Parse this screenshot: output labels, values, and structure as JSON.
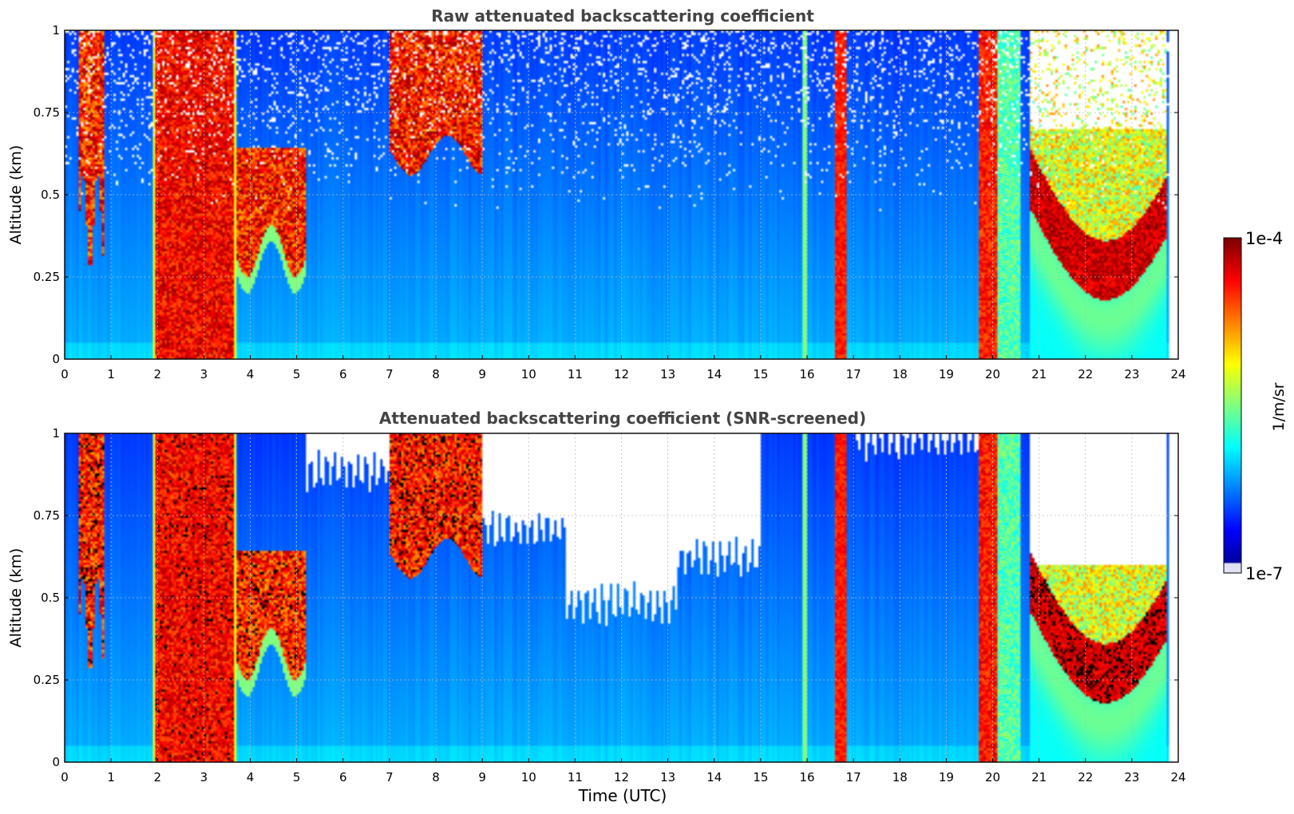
{
  "chart_data": [
    {
      "type": "heatmap",
      "title": "Raw attenuated backscattering coefficient",
      "xlabel": "",
      "ylabel": "Altitude (km)",
      "xlim": [
        0,
        24
      ],
      "ylim": [
        0,
        1
      ],
      "xticks": [
        0,
        1,
        2,
        3,
        4,
        5,
        6,
        7,
        8,
        9,
        10,
        11,
        12,
        13,
        14,
        15,
        16,
        17,
        18,
        19,
        20,
        21,
        22,
        23,
        24
      ],
      "xtick_labels": [
        "0",
        "1",
        "2",
        "3",
        "4",
        "5",
        "6",
        "7",
        "8",
        "9",
        "10",
        "11",
        "12",
        "13",
        "14",
        "15",
        "16",
        "17",
        "18",
        "19",
        "20",
        "21",
        "22",
        "23",
        "24"
      ],
      "yticks": [
        0,
        0.25,
        0.5,
        0.75,
        1
      ],
      "ytick_labels": [
        "0",
        "0.25",
        "0.5",
        "0.75",
        "1"
      ],
      "grid": true,
      "colorscale": "jet",
      "cloud_layers": [
        {
          "t_start": 0.3,
          "t_end": 0.85,
          "base_km": 0.42,
          "top_km": 1.0
        },
        {
          "t_start": 1.9,
          "t_end": 3.7,
          "base_km": 0.0,
          "top_km": 1.0
        },
        {
          "t_start": 3.7,
          "t_end": 5.2,
          "base_km": 0.33,
          "top_km": 0.62
        },
        {
          "t_start": 7.0,
          "t_end": 9.0,
          "base_km": 0.62,
          "top_km": 1.0
        },
        {
          "t_start": 16.6,
          "t_end": 16.85,
          "base_km": 0.0,
          "top_km": 1.0
        },
        {
          "t_start": 19.7,
          "t_end": 20.1,
          "base_km": 0.0,
          "top_km": 1.0
        },
        {
          "t_start": 21.0,
          "t_end": 23.7,
          "base_km": 0.2,
          "top_km": 0.5
        }
      ]
    },
    {
      "type": "heatmap",
      "title": "Attenuated backscattering coefficient (SNR-screened)",
      "xlabel": "Time (UTC)",
      "ylabel": "Altitude (km)",
      "xlim": [
        0,
        24
      ],
      "ylim": [
        0,
        1
      ],
      "xticks": [
        0,
        1,
        2,
        3,
        4,
        5,
        6,
        7,
        8,
        9,
        10,
        11,
        12,
        13,
        14,
        15,
        16,
        17,
        18,
        19,
        20,
        21,
        22,
        23,
        24
      ],
      "xtick_labels": [
        "0",
        "1",
        "2",
        "3",
        "4",
        "5",
        "6",
        "7",
        "8",
        "9",
        "10",
        "11",
        "12",
        "13",
        "14",
        "15",
        "16",
        "17",
        "18",
        "19",
        "20",
        "21",
        "22",
        "23",
        "24"
      ],
      "yticks": [
        0,
        0.25,
        0.5,
        0.75,
        1
      ],
      "ytick_labels": [
        "0",
        "0.25",
        "0.5",
        "0.75",
        "1"
      ],
      "grid": true,
      "colorscale": "jet",
      "cloud_layers": [
        {
          "t_start": 0.3,
          "t_end": 0.85,
          "base_km": 0.42,
          "top_km": 1.0
        },
        {
          "t_start": 1.9,
          "t_end": 3.7,
          "base_km": 0.0,
          "top_km": 1.0
        },
        {
          "t_start": 3.7,
          "t_end": 5.2,
          "base_km": 0.33,
          "top_km": 0.62
        },
        {
          "t_start": 7.0,
          "t_end": 9.0,
          "base_km": 0.62,
          "top_km": 1.0
        },
        {
          "t_start": 16.6,
          "t_end": 16.85,
          "base_km": 0.0,
          "top_km": 1.0
        },
        {
          "t_start": 19.7,
          "t_end": 20.1,
          "base_km": 0.0,
          "top_km": 1.0
        },
        {
          "t_start": 21.0,
          "t_end": 23.7,
          "base_km": 0.2,
          "top_km": 0.5
        }
      ]
    }
  ],
  "colorbar": {
    "label": "1/m/sr",
    "max_label": "1e-4",
    "min_label": "1e-7",
    "range": [
      1e-07,
      0.0001
    ],
    "log": true
  }
}
